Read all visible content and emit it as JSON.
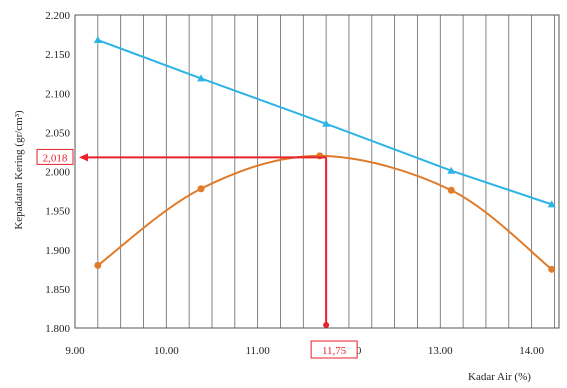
{
  "chart_data": {
    "type": "line",
    "xlabel": "Kadar Air (%)",
    "ylabel": "Kepadatan Kering (gr/cm³)",
    "xlim": [
      9.0,
      14.3
    ],
    "ylim": [
      1.8,
      2.2
    ],
    "x_ticks": [
      "9.00",
      "10.00",
      "11.00",
      "12.00",
      "13.00",
      "14.00"
    ],
    "y_ticks": [
      "1.800",
      "1.850",
      "1.900",
      "1.950",
      "2.000",
      "2.050",
      "2.100",
      "2.150",
      "2.200"
    ],
    "x_ticks_values": [
      9,
      10,
      11,
      12,
      13,
      14
    ],
    "y_ticks_values": [
      1.8,
      1.85,
      1.9,
      1.95,
      2.0,
      2.05,
      2.1,
      2.15,
      2.2
    ],
    "grid": "vertical",
    "series": [
      {
        "color": "#2db4e6",
        "marker": "triangle",
        "x": [
          9.25,
          10.38,
          11.75,
          13.12,
          14.22
        ],
        "y": [
          2.168,
          2.119,
          2.061,
          2.001,
          1.958
        ]
      },
      {
        "color": "#e07b2a",
        "marker": "circle",
        "x": [
          9.25,
          10.38,
          11.68,
          13.12,
          14.22
        ],
        "y": [
          1.88,
          1.978,
          2.02,
          1.976,
          1.875
        ]
      }
    ],
    "annotations": {
      "color": "#e8212a",
      "max_density_label": "2,018",
      "max_density_value": 2.018,
      "optimum_moisture_label": "11,75",
      "optimum_moisture_value": 11.75
    }
  }
}
